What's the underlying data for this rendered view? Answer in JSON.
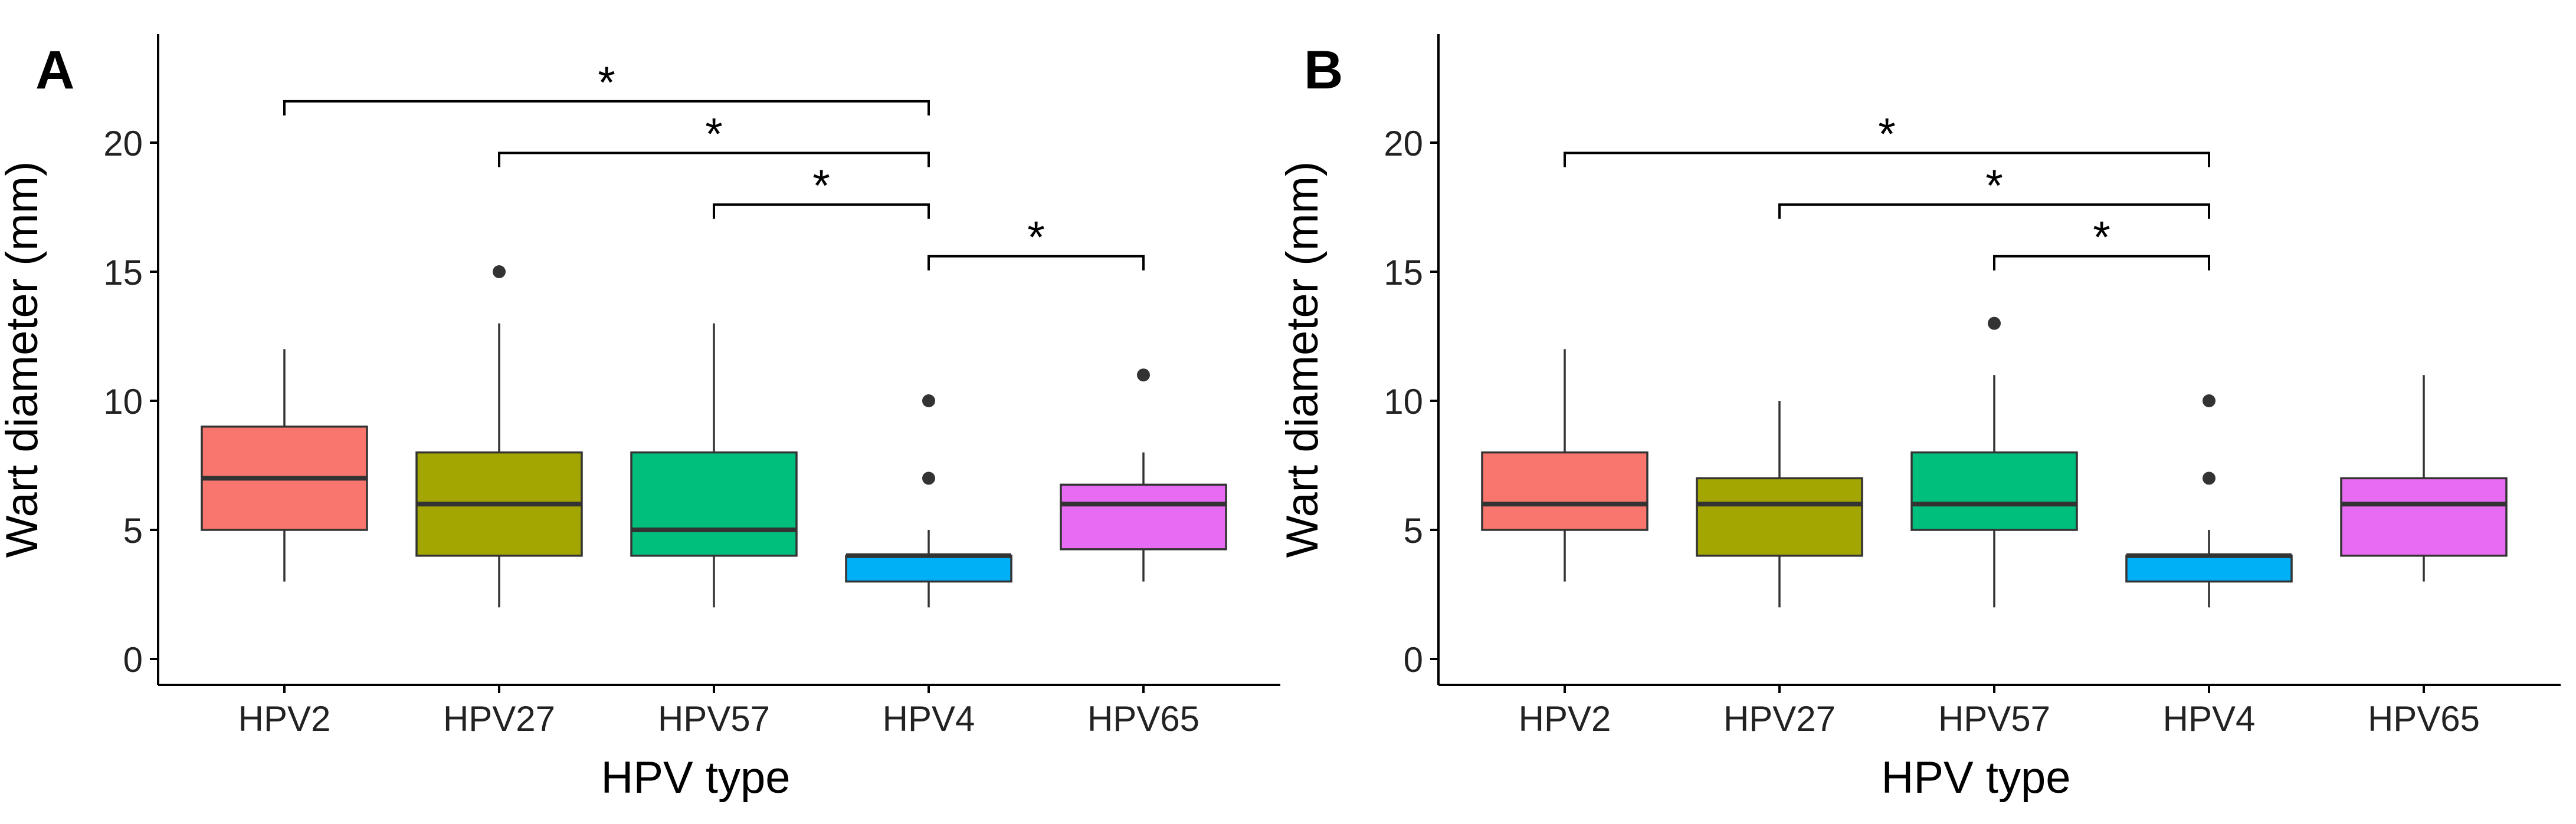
{
  "chart_data": [
    {
      "type": "box",
      "panel_label": "A",
      "title": "",
      "xlabel": "HPV type",
      "ylabel": "Wart diameter (mm)",
      "ylim": [
        -1,
        24
      ],
      "yticks": [
        0,
        5,
        10,
        15,
        20
      ],
      "ytick_labels": [
        "0",
        "5",
        "10",
        "15",
        "20"
      ],
      "grid": false,
      "categories": [
        "HPV2",
        "HPV27",
        "HPV57",
        "HPV4",
        "HPV65"
      ],
      "colors": [
        "#F8766D",
        "#A3A500",
        "#00BF7D",
        "#00B0F6",
        "#E76BF3"
      ],
      "boxes": [
        {
          "category": "HPV2",
          "min": 3,
          "q1": 5,
          "median": 7,
          "q3": 9,
          "max": 12,
          "outliers": []
        },
        {
          "category": "HPV27",
          "min": 2,
          "q1": 4,
          "median": 6,
          "q3": 8,
          "max": 13,
          "outliers": [
            15
          ]
        },
        {
          "category": "HPV57",
          "min": 2,
          "q1": 4,
          "median": 5,
          "q3": 8,
          "max": 13,
          "outliers": []
        },
        {
          "category": "HPV4",
          "min": 2,
          "q1": 3,
          "median": 4,
          "q3": 4,
          "max": 5,
          "outliers": [
            7,
            10
          ]
        },
        {
          "category": "HPV65",
          "min": 3,
          "q1": 4.25,
          "median": 6,
          "q3": 6.75,
          "max": 8,
          "outliers": [
            11
          ]
        }
      ],
      "significance": [
        {
          "from": "HPV2",
          "to": "HPV4",
          "y": 21.6,
          "label": "*"
        },
        {
          "from": "HPV27",
          "to": "HPV4",
          "y": 19.6,
          "label": "*"
        },
        {
          "from": "HPV57",
          "to": "HPV4",
          "y": 17.6,
          "label": "*"
        },
        {
          "from": "HPV4",
          "to": "HPV65",
          "y": 15.6,
          "label": "*"
        }
      ]
    },
    {
      "type": "box",
      "panel_label": "B",
      "title": "",
      "xlabel": "HPV type",
      "ylabel": "Wart diameter (mm)",
      "ylim": [
        -1,
        24
      ],
      "yticks": [
        0,
        5,
        10,
        15,
        20
      ],
      "ytick_labels": [
        "0",
        "5",
        "10",
        "15",
        "20"
      ],
      "grid": false,
      "categories": [
        "HPV2",
        "HPV27",
        "HPV57",
        "HPV4",
        "HPV65"
      ],
      "colors": [
        "#F8766D",
        "#A3A500",
        "#00BF7D",
        "#00B0F6",
        "#E76BF3"
      ],
      "boxes": [
        {
          "category": "HPV2",
          "min": 3,
          "q1": 5,
          "median": 6,
          "q3": 8,
          "max": 12,
          "outliers": []
        },
        {
          "category": "HPV27",
          "min": 2,
          "q1": 4,
          "median": 6,
          "q3": 7,
          "max": 10,
          "outliers": []
        },
        {
          "category": "HPV57",
          "min": 2,
          "q1": 5,
          "median": 6,
          "q3": 8,
          "max": 11,
          "outliers": [
            13
          ]
        },
        {
          "category": "HPV4",
          "min": 2,
          "q1": 3,
          "median": 4,
          "q3": 4,
          "max": 5,
          "outliers": [
            7,
            10
          ]
        },
        {
          "category": "HPV65",
          "min": 3,
          "q1": 4,
          "median": 6,
          "q3": 7,
          "max": 11,
          "outliers": []
        }
      ],
      "significance": [
        {
          "from": "HPV2",
          "to": "HPV4",
          "y": 19.6,
          "label": "*"
        },
        {
          "from": "HPV27",
          "to": "HPV4",
          "y": 17.6,
          "label": "*"
        },
        {
          "from": "HPV57",
          "to": "HPV4",
          "y": 15.6,
          "label": "*"
        }
      ]
    }
  ]
}
